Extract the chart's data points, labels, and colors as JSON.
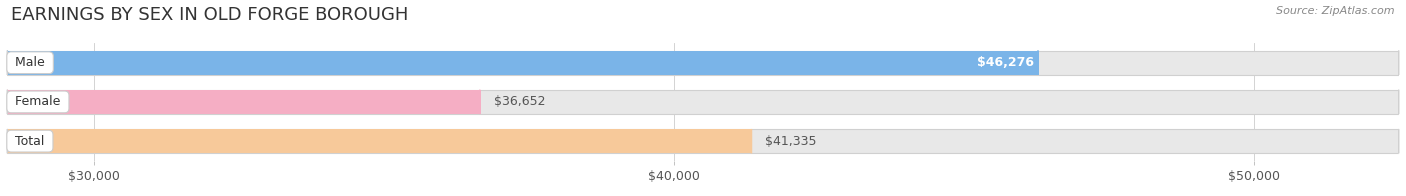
{
  "title": "EARNINGS BY SEX IN OLD FORGE BOROUGH",
  "source_text": "Source: ZipAtlas.com",
  "categories": [
    "Male",
    "Female",
    "Total"
  ],
  "values": [
    46276,
    36652,
    41335
  ],
  "bar_colors": [
    "#7ab4e8",
    "#f5aec4",
    "#f7c99a"
  ],
  "value_labels": [
    "$46,276",
    "$36,652",
    "$41,335"
  ],
  "label_inside": [
    true,
    false,
    false
  ],
  "label_color_inside": "#ffffff",
  "label_color_outside": "#555555",
  "xlim_min": 28500,
  "xlim_max": 52500,
  "xticks": [
    30000,
    40000,
    50000
  ],
  "xtick_labels": [
    "$30,000",
    "$40,000",
    "$50,000"
  ],
  "bar_height": 0.62,
  "background_color": "#ffffff",
  "bar_bg_color": "#e8e8e8",
  "bar_border_color": "#d0d0d0",
  "title_fontsize": 13,
  "label_fontsize": 9,
  "tick_fontsize": 9,
  "category_fontsize": 9,
  "source_fontsize": 8
}
